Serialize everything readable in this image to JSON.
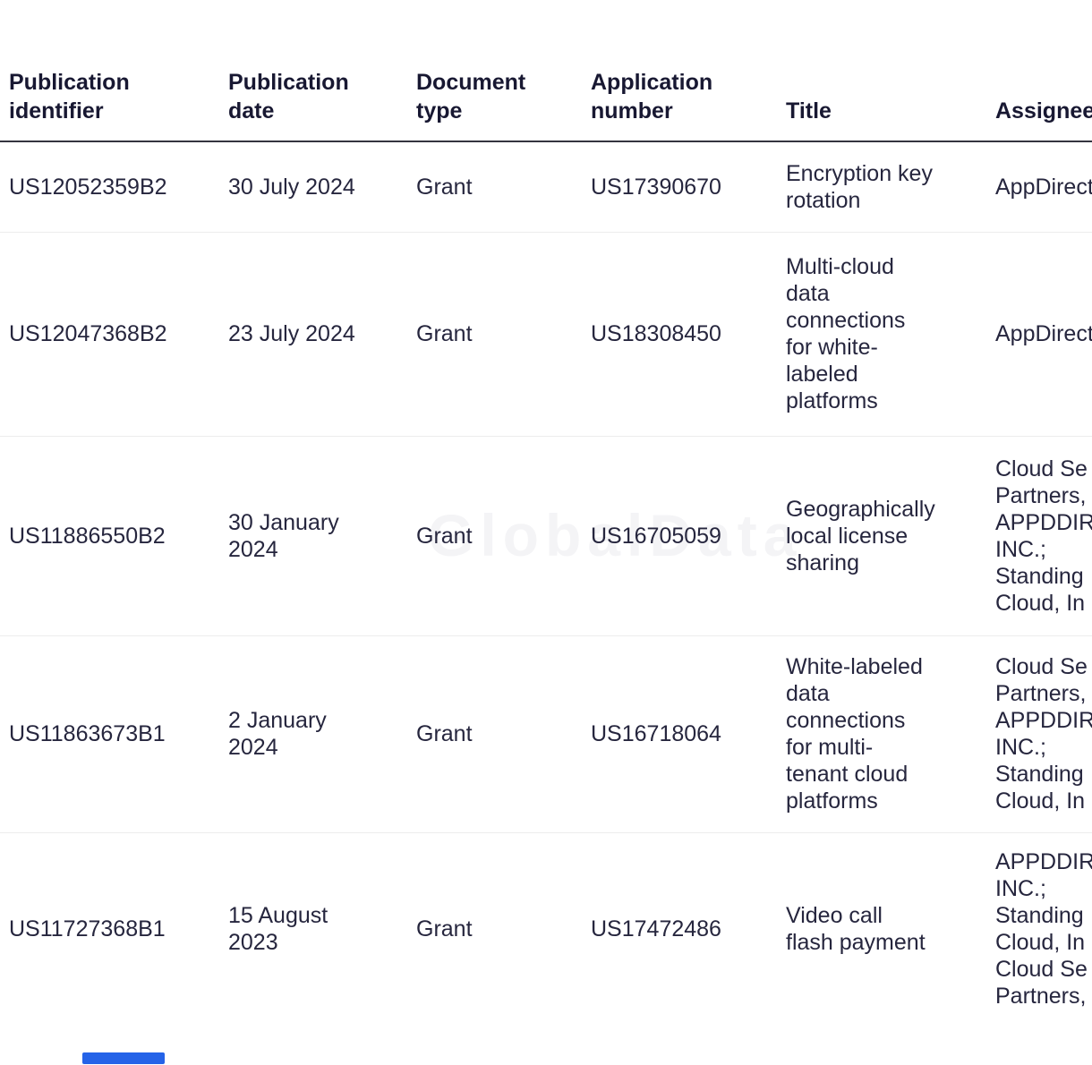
{
  "watermark": "GlobalData",
  "colors": {
    "accent_blue": "#2563e8",
    "body_text": "#26263e",
    "header_text": "#181832",
    "header_rule": "#34343f",
    "row_divider": "#ededed",
    "watermark_gray": "#f4f4f6"
  },
  "table": {
    "columns": {
      "publication_identifier": "Publication\nidentifier",
      "publication_date": "Publication\ndate",
      "document_type": "Document\ntype",
      "application_number": "Application\nnumber",
      "title": "Title",
      "assignee": "Assignee"
    },
    "rows": [
      {
        "publication_identifier": "US12052359B2",
        "publication_date": "30 July 2024",
        "document_type": "Grant",
        "application_number": "US17390670",
        "title": "Encryption key\nrotation",
        "assignee": "AppDirect"
      },
      {
        "publication_identifier": "US12047368B2",
        "publication_date": "23 July 2024",
        "document_type": "Grant",
        "application_number": "US18308450",
        "title": "Multi-cloud\ndata\nconnections\nfor white-\nlabeled\nplatforms",
        "assignee": "AppDirect"
      },
      {
        "publication_identifier": "US11886550B2",
        "publication_date": "30 January\n2024",
        "document_type": "Grant",
        "application_number": "US16705059",
        "title": "Geographically\nlocal license\nsharing",
        "assignee": "Cloud Se\nPartners,\nAPPDDIR\nINC.;\nStanding\nCloud, In"
      },
      {
        "publication_identifier": "US11863673B1",
        "publication_date": "2 January\n2024",
        "document_type": "Grant",
        "application_number": "US16718064",
        "title": "White-labeled\ndata\nconnections\nfor multi-\ntenant cloud\nplatforms",
        "assignee": "Cloud Se\nPartners,\nAPPDDIR\nINC.;\nStanding\nCloud, In"
      },
      {
        "publication_identifier": "US11727368B1",
        "publication_date": "15 August\n2023",
        "document_type": "Grant",
        "application_number": "US17472486",
        "title": "Video call\nflash payment",
        "assignee": "APPDDIR\nINC.;\nStanding\nCloud, In\nCloud Se\nPartners,"
      }
    ]
  }
}
